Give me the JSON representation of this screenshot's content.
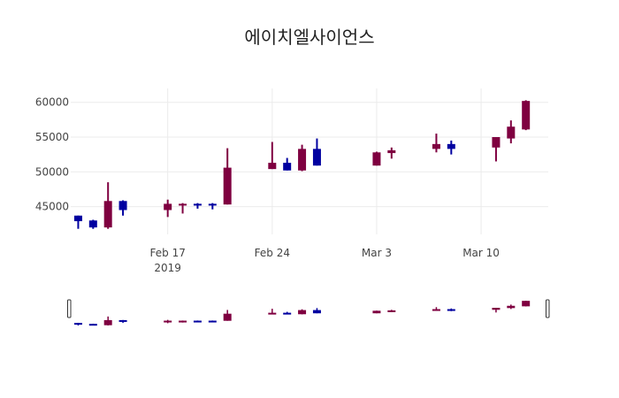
{
  "chart_data": {
    "type": "candlestick",
    "title": "에이치엘사이언스",
    "increasing_color": "#7f0040",
    "decreasing_color": "#0000a0",
    "grid": true,
    "range_slider": true,
    "x_ticks": [
      {
        "date": "2019-02-17",
        "label": "Feb 17",
        "sub": "2019"
      },
      {
        "date": "2019-02-24",
        "label": "Feb 24",
        "sub": ""
      },
      {
        "date": "2019-03-03",
        "label": "Mar 3",
        "sub": ""
      },
      {
        "date": "2019-03-10",
        "label": "Mar 10",
        "sub": ""
      }
    ],
    "y_ticks": [
      45000,
      50000,
      55000,
      60000
    ],
    "xlim": [
      "2019-02-11",
      "2019-03-14"
    ],
    "ylim": [
      41000,
      62000
    ],
    "candles": [
      {
        "date": "2019-02-11",
        "open": 43700,
        "high": 43700,
        "low": 41800,
        "close": 42900
      },
      {
        "date": "2019-02-12",
        "open": 43000,
        "high": 43100,
        "low": 41800,
        "close": 42000
      },
      {
        "date": "2019-02-13",
        "open": 42000,
        "high": 48500,
        "low": 41800,
        "close": 45800
      },
      {
        "date": "2019-02-14",
        "open": 45800,
        "high": 45900,
        "low": 43700,
        "close": 44500
      },
      {
        "date": "2019-02-17",
        "open": 44500,
        "high": 46000,
        "low": 43500,
        "close": 45400
      },
      {
        "date": "2019-02-18",
        "open": 45200,
        "high": 45500,
        "low": 44000,
        "close": 45400
      },
      {
        "date": "2019-02-19",
        "open": 45400,
        "high": 45500,
        "low": 44700,
        "close": 45200
      },
      {
        "date": "2019-02-20",
        "open": 45400,
        "high": 45500,
        "low": 44600,
        "close": 45200
      },
      {
        "date": "2019-02-21",
        "open": 45300,
        "high": 53400,
        "low": 45300,
        "close": 50600
      },
      {
        "date": "2019-02-24",
        "open": 50400,
        "high": 54300,
        "low": 50400,
        "close": 51300
      },
      {
        "date": "2019-02-25",
        "open": 51300,
        "high": 52000,
        "low": 50200,
        "close": 50200
      },
      {
        "date": "2019-02-26",
        "open": 50200,
        "high": 53900,
        "low": 50100,
        "close": 53300
      },
      {
        "date": "2019-02-27",
        "open": 53300,
        "high": 54800,
        "low": 50900,
        "close": 50900
      },
      {
        "date": "2019-03-03",
        "open": 50900,
        "high": 52900,
        "low": 50900,
        "close": 52800
      },
      {
        "date": "2019-03-04",
        "open": 52700,
        "high": 53500,
        "low": 51900,
        "close": 53100
      },
      {
        "date": "2019-03-07",
        "open": 53300,
        "high": 55500,
        "low": 52800,
        "close": 54000
      },
      {
        "date": "2019-03-08",
        "open": 54000,
        "high": 54500,
        "low": 52500,
        "close": 53300
      },
      {
        "date": "2019-03-11",
        "open": 53500,
        "high": 55000,
        "low": 51500,
        "close": 55000
      },
      {
        "date": "2019-03-12",
        "open": 54800,
        "high": 57400,
        "low": 54100,
        "close": 56500
      },
      {
        "date": "2019-03-13",
        "open": 56100,
        "high": 60300,
        "low": 56000,
        "close": 60200
      }
    ]
  }
}
